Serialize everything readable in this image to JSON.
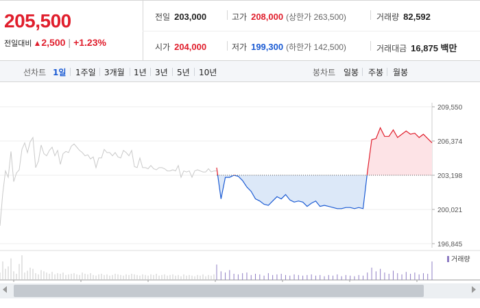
{
  "quote": {
    "price": "205,500",
    "change_label": "전일대비",
    "change_arrow": "▲",
    "change_value": "2,500",
    "change_percent": "+1.23%"
  },
  "stats": {
    "prev_close": {
      "label": "전일",
      "value": "203,000"
    },
    "high": {
      "label": "고가",
      "value": "208,000",
      "note": "(상한가 263,500)"
    },
    "volume": {
      "label": "거래량",
      "value": "82,592"
    },
    "open": {
      "label": "시가",
      "value": "204,000"
    },
    "low": {
      "label": "저가",
      "value": "199,300",
      "note": "(하한가 142,500)"
    },
    "trade_value": {
      "label": "거래대금",
      "value": "16,875 백만"
    }
  },
  "period_bar": {
    "line_chart_label": "선차트",
    "line_periods": [
      "1일",
      "1주일",
      "3개월",
      "1년",
      "3년",
      "5년",
      "10년"
    ],
    "active_period": "1일",
    "candle_chart_label": "봉차트",
    "candle_periods": [
      "일봉",
      "주봉",
      "월봉"
    ]
  },
  "colors": {
    "up": "#e01e2c",
    "down": "#1a5ad3",
    "past": "#c9c9c9",
    "volume_today": "#8e7cc3"
  },
  "chart_data": {
    "type": "line",
    "title": "",
    "xlabel": "",
    "ylabel": "",
    "ylim": [
      196845,
      209550
    ],
    "y_ticks": [
      "209,550",
      "206,374",
      "203,198",
      "200,021",
      "196,845"
    ],
    "reference_price": 203198,
    "volume_legend": "거래량",
    "series": [
      {
        "role": "previous",
        "values": [
          198500,
          201500,
          203600,
          203000,
          205400,
          202600,
          203400,
          203700,
          205600,
          206200,
          205300,
          206300,
          206700,
          203900,
          204500,
          206000,
          205200,
          205000,
          205500,
          205800,
          205000,
          205500,
          204200,
          205200,
          205400,
          205300,
          205900,
          206100,
          205800,
          205500,
          205300,
          205000,
          205100,
          204700,
          204900,
          203900,
          204800,
          204800,
          205600,
          205300,
          205300,
          205000,
          205300,
          204900,
          204800,
          205500,
          205300,
          205000,
          205500,
          204000,
          203900,
          204800,
          203900,
          203900,
          203800,
          204100,
          203800,
          203700,
          203900,
          203900,
          203800,
          203600,
          203600,
          203700,
          203600,
          204100,
          203000,
          203600,
          203500,
          203600,
          203000,
          203600,
          203700,
          203600,
          203500,
          203500,
          203800,
          203500,
          203600,
          203600
        ]
      },
      {
        "role": "today",
        "values": [
          203900,
          201000,
          203000,
          203000,
          203200,
          203100,
          202700,
          202100,
          201700,
          201000,
          200800,
          200500,
          200400,
          200800,
          201200,
          201000,
          201400,
          200900,
          200700,
          200800,
          200700,
          200300,
          200600,
          200800,
          200300,
          200400,
          200300,
          200200,
          200100,
          200100,
          200200,
          200200,
          200100,
          200200,
          200100,
          203500,
          206500,
          206600,
          207600,
          206800,
          206800,
          207400,
          206700,
          207000,
          207300,
          207000,
          207100,
          206700,
          207000,
          206600,
          206200
        ]
      }
    ],
    "volume": {
      "previous": [
        12,
        30,
        18,
        22,
        35,
        14,
        10,
        26,
        40,
        12,
        15,
        20,
        18,
        11,
        9,
        16,
        14,
        12,
        10,
        13,
        9,
        11,
        10,
        12,
        8,
        9,
        10,
        11,
        9,
        8,
        12,
        10,
        9,
        11,
        8,
        7,
        9,
        10,
        8,
        9,
        7,
        8,
        10,
        9,
        8,
        7,
        9,
        8,
        10,
        9,
        8,
        7,
        9,
        8,
        7,
        9,
        8,
        10,
        7,
        8,
        9,
        7,
        8,
        9,
        7,
        8,
        6,
        9,
        7,
        8,
        7,
        6,
        8,
        7,
        9,
        6,
        8,
        7,
        9,
        6
      ],
      "today": [
        25,
        14,
        12,
        16,
        10,
        9,
        11,
        12,
        8,
        10,
        9,
        7,
        11,
        8,
        9,
        10,
        8,
        7,
        9,
        8,
        7,
        8,
        9,
        7,
        8,
        6,
        8,
        7,
        9,
        6,
        8,
        7,
        6,
        8,
        7,
        12,
        20,
        14,
        18,
        12,
        10,
        15,
        11,
        9,
        13,
        10,
        12,
        9,
        11,
        10,
        30
      ]
    }
  }
}
